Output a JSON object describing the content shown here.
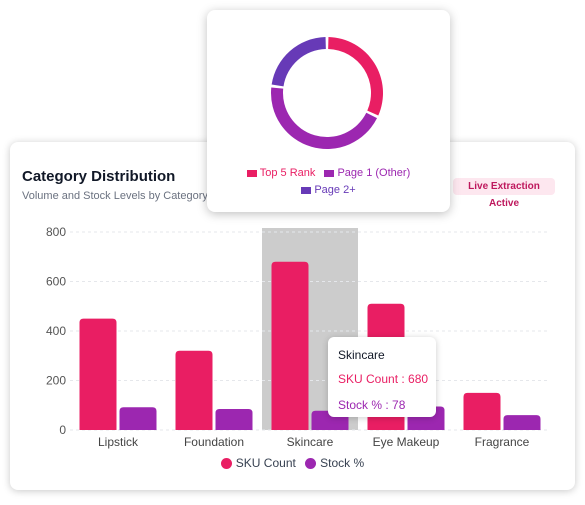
{
  "card": {
    "title": "Category Distribution",
    "subtitle": "Volume and Stock Levels by Category",
    "badge": "Live Extraction Active"
  },
  "tooltip": {
    "title": "Skincare",
    "sku_label": "SKU Count",
    "sku_value": "680",
    "stock_label": "Stock %",
    "stock_value": "78"
  },
  "colors": {
    "sku": "#e91e63",
    "stock": "#9c27b0",
    "page2": "#673ab7",
    "highlight": "#cccccc"
  },
  "chart_data": [
    {
      "type": "bar",
      "categories": [
        "Lipstick",
        "Foundation",
        "Skincare",
        "Eye Makeup",
        "Fragrance"
      ],
      "series": [
        {
          "name": "SKU Count",
          "values": [
            450,
            320,
            680,
            510,
            150
          ]
        },
        {
          "name": "Stock %",
          "values": [
            92,
            85,
            78,
            95,
            60
          ]
        }
      ],
      "yticks": [
        0,
        200,
        400,
        600,
        800
      ],
      "ylim": [
        0,
        800
      ],
      "highlighted_category": "Skincare",
      "legend": "bottom",
      "grid": true
    },
    {
      "type": "pie",
      "labels": [
        "Top 5 Rank",
        "Page 1 (Other)",
        "Page 2+"
      ],
      "values": [
        32,
        45,
        23
      ],
      "legend": "bottom"
    }
  ]
}
